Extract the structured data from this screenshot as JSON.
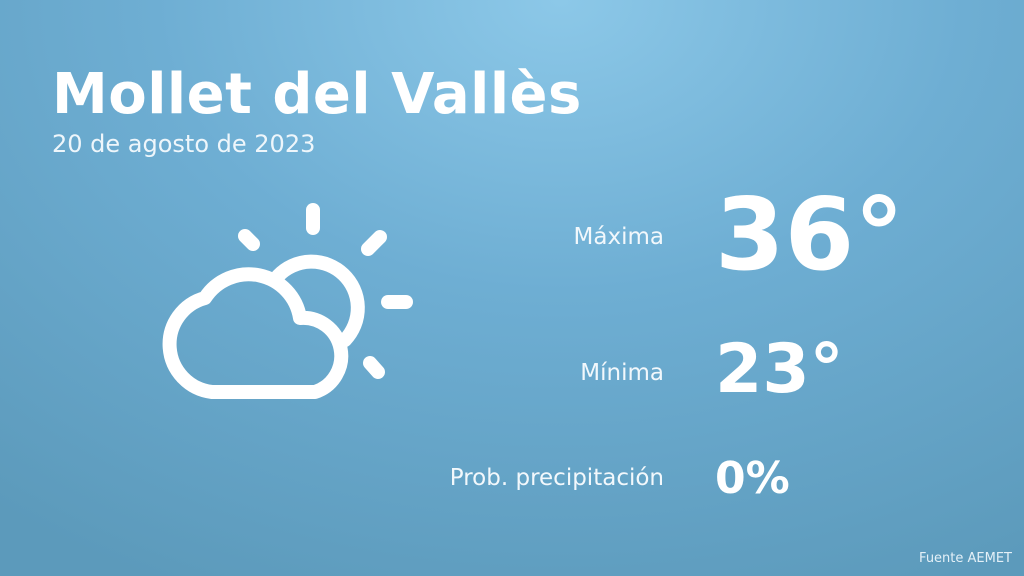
{
  "header": {
    "title": "Mollet del Vallès",
    "date": "20 de agosto de 2023"
  },
  "weather": {
    "icon": "partly-cloudy-icon",
    "max_label": "Máxima",
    "max_value": "36°",
    "min_label": "Mínima",
    "min_value": "23°",
    "precip_label": "Prob. precipitación",
    "precip_value": "0%"
  },
  "footer": {
    "source": "Fuente AEMET"
  },
  "colors": {
    "background_top": "#8cc8e8",
    "background_bottom": "#5c9abb",
    "text": "#ffffff"
  }
}
